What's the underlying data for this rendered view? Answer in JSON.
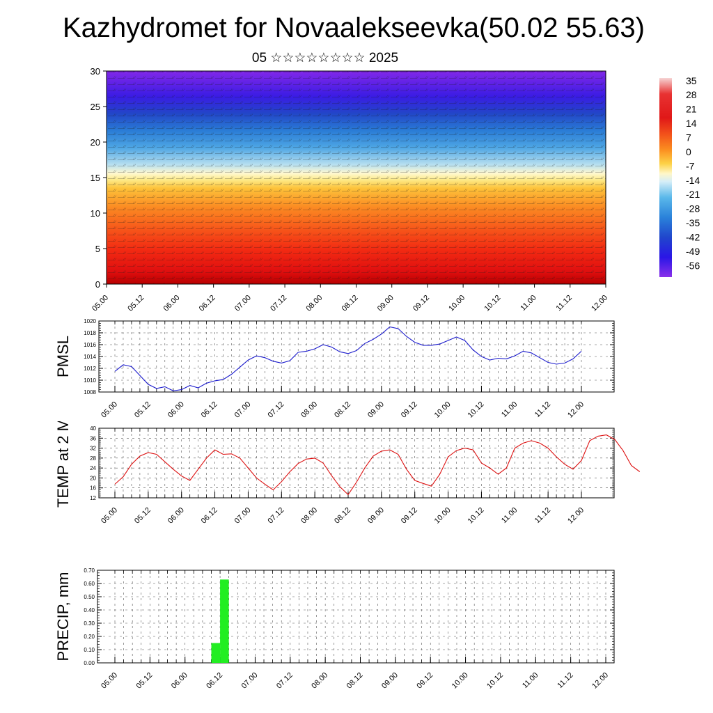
{
  "title": "Kazhydromet for Novaalekseevka(50.02 55.63)",
  "subtitle": "05 ☆☆☆☆☆☆☆☆ 2025",
  "colors": {
    "pmsl_line": "#1a1acc",
    "temp_line": "#dd1111",
    "precip_bar": "#22ee22"
  },
  "chart_data": [
    {
      "type": "heatmap",
      "name": "vertical cross-section (temperature with wind barbs)",
      "x_tick_labels": [
        "05.00",
        "05.12",
        "06.00",
        "06.12",
        "07.00",
        "07.12",
        "08.00",
        "08.12",
        "09.00",
        "09.12",
        "10.00",
        "10.12",
        "11.00",
        "11.12",
        "12.00"
      ],
      "y_ticks": [
        0,
        5,
        10,
        15,
        20,
        25,
        30
      ],
      "ylim": [
        0,
        30
      ],
      "colorbar_labels": [
        "35",
        "28",
        "21",
        "14",
        "7",
        "0",
        "-7",
        "-14",
        "-21",
        "-28",
        "-35",
        "-42",
        "-49",
        "-56"
      ],
      "colorbar_range": [
        -60,
        38
      ]
    },
    {
      "type": "line",
      "ylabel": "PMSL",
      "x_tick_labels": [
        "05.00",
        "05.12",
        "06.00",
        "06.12",
        "07.00",
        "07.12",
        "08.00",
        "08.12",
        "09.00",
        "09.12",
        "10.00",
        "10.12",
        "11.00",
        "11.12",
        "12.00"
      ],
      "y_tick_labels": [
        "1008",
        "1010",
        "1012",
        "1014",
        "1016",
        "1018",
        "1020"
      ],
      "ylim": [
        1008,
        1020
      ],
      "step_hours": 3,
      "values": [
        1011.5,
        1012.6,
        1012.3,
        1010.8,
        1009.3,
        1008.6,
        1008.9,
        1008.2,
        1008.4,
        1009.1,
        1008.7,
        1009.5,
        1009.9,
        1010.1,
        1011.0,
        1012.2,
        1013.4,
        1014.1,
        1013.8,
        1013.2,
        1012.9,
        1013.3,
        1014.7,
        1014.9,
        1015.3,
        1016.0,
        1015.6,
        1014.8,
        1014.5,
        1015.0,
        1016.2,
        1016.9,
        1017.8,
        1019.0,
        1018.7,
        1017.4,
        1016.4,
        1015.9,
        1015.9,
        1016.1,
        1016.7,
        1017.3,
        1016.7,
        1015.1,
        1014.0,
        1013.4,
        1013.7,
        1013.6,
        1014.1,
        1014.9,
        1014.6,
        1013.8,
        1013.0,
        1012.7,
        1012.9,
        1013.6,
        1014.9
      ]
    },
    {
      "type": "line",
      "ylabel": "TEMP at 2 M",
      "x_tick_labels": [
        "05.00",
        "05.12",
        "06.00",
        "06.12",
        "07.00",
        "07.12",
        "08.00",
        "08.12",
        "09.00",
        "09.12",
        "10.00",
        "10.12",
        "11.00",
        "11.12",
        "12.00"
      ],
      "y_tick_labels": [
        "12",
        "16",
        "20",
        "24",
        "28",
        "32",
        "36",
        "40"
      ],
      "ylim": [
        12,
        40
      ],
      "step_hours": 3,
      "values": [
        17.5,
        20.5,
        25.5,
        28.8,
        30.2,
        29.5,
        26.5,
        23.5,
        20.8,
        19.0,
        23.5,
        28.0,
        31.3,
        29.5,
        29.7,
        28.0,
        24.0,
        20.0,
        17.5,
        15.2,
        18.5,
        22.5,
        25.8,
        27.6,
        28.0,
        26.0,
        21.0,
        16.5,
        13.3,
        18.3,
        24.0,
        28.8,
        30.8,
        31.3,
        29.5,
        23.5,
        19.0,
        17.8,
        16.7,
        21.5,
        28.5,
        31.0,
        32.0,
        31.3,
        26.0,
        24.0,
        21.5,
        24.0,
        32.0,
        34.0,
        35.0,
        34.0,
        32.0,
        28.5,
        25.5,
        23.5,
        27.0,
        35.0,
        36.8,
        37.3,
        35.5,
        31.0,
        25.0,
        22.5
      ]
    },
    {
      "type": "bar",
      "ylabel": "PRECIP, mm",
      "x_tick_labels": [
        "05.00",
        "05.12",
        "06.00",
        "06.12",
        "07.00",
        "07.12",
        "08.00",
        "08.12",
        "09.00",
        "09.12",
        "10.00",
        "10.12",
        "11.00",
        "11.12",
        "12.00"
      ],
      "y_tick_labels": [
        "0.00",
        "0.10",
        "0.20",
        "0.30",
        "0.40",
        "0.50",
        "0.60",
        "0.70"
      ],
      "ylim": [
        0,
        0.7
      ],
      "bars": [
        {
          "start_hours": 33,
          "end_hours": 36,
          "value": 0.15
        },
        {
          "start_hours": 36,
          "end_hours": 39,
          "value": 0.63
        }
      ]
    }
  ]
}
